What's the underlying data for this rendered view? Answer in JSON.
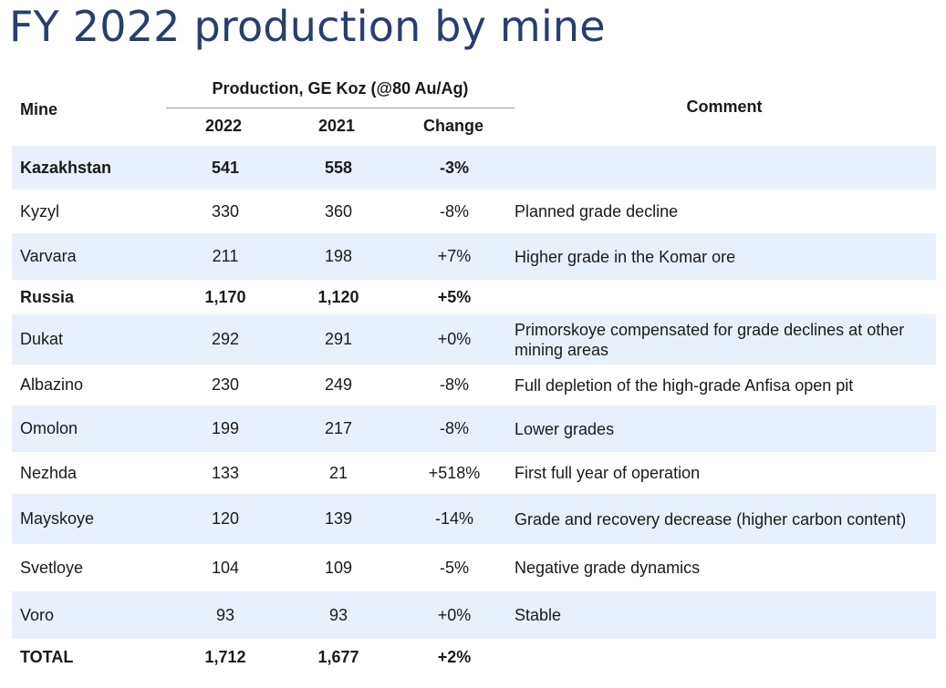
{
  "title": "FY 2022 production by mine",
  "header": {
    "mine": "Mine",
    "production_group": "Production, GE Koz (@80 Au/Ag)",
    "year_2022": "2022",
    "year_2021": "2021",
    "change": "Change",
    "comment": "Comment"
  },
  "rows": [
    {
      "mine": "Kazakhstan",
      "v2022": "541",
      "v2021": "558",
      "change": "-3%",
      "comment": ""
    },
    {
      "mine": "Kyzyl",
      "v2022": "330",
      "v2021": "360",
      "change": "-8%",
      "comment": "Planned grade decline"
    },
    {
      "mine": "Varvara",
      "v2022": "211",
      "v2021": "198",
      "change": "+7%",
      "comment": "Higher grade in the Komar ore"
    },
    {
      "mine": "Russia",
      "v2022": "1,170",
      "v2021": "1,120",
      "change": "+5%",
      "comment": ""
    },
    {
      "mine": "Dukat",
      "v2022": "292",
      "v2021": "291",
      "change": "+0%",
      "comment": "Primorskoye compensated for grade declines at other mining areas"
    },
    {
      "mine": "Albazino",
      "v2022": "230",
      "v2021": "249",
      "change": "-8%",
      "comment": "Full depletion of the high-grade Anfisa open pit"
    },
    {
      "mine": "Omolon",
      "v2022": "199",
      "v2021": "217",
      "change": "-8%",
      "comment": "Lower grades"
    },
    {
      "mine": "Nezhda",
      "v2022": "133",
      "v2021": "21",
      "change": "+518%",
      "comment": "First full year of operation"
    },
    {
      "mine": "Mayskoye",
      "v2022": "120",
      "v2021": "139",
      "change": "-14%",
      "comment": "Grade and recovery decrease (higher carbon content)"
    },
    {
      "mine": "Svetloye",
      "v2022": "104",
      "v2021": "109",
      "change": "-5%",
      "comment": "Negative grade dynamics"
    },
    {
      "mine": "Voro",
      "v2022": "93",
      "v2021": "93",
      "change": "+0%",
      "comment": "Stable"
    },
    {
      "mine": "TOTAL",
      "v2022": "1,712",
      "v2021": "1,677",
      "change": "+2%",
      "comment": ""
    }
  ]
}
